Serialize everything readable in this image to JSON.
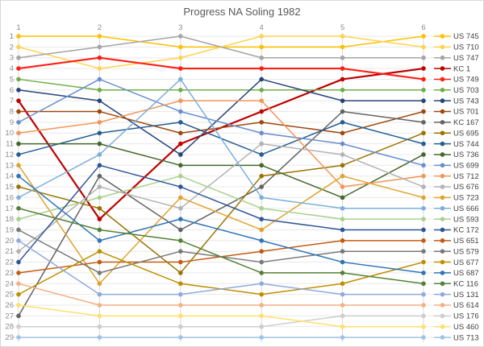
{
  "chart": {
    "title": "Progress NA Soling 1982"
  },
  "chart_data": {
    "type": "line",
    "subtype": "bump-rank-progress",
    "title": "Progress NA Soling 1982",
    "xlabel": "",
    "ylabel": "",
    "x_axis_position": "top",
    "x_ticks": [
      "1",
      "2",
      "3",
      "4",
      "5",
      "6"
    ],
    "y_ticks": [
      "1",
      "2",
      "3",
      "4",
      "5",
      "6",
      "7",
      "8",
      "9",
      "10",
      "11",
      "12",
      "13",
      "14",
      "15",
      "16",
      "17",
      "18",
      "19",
      "20",
      "21",
      "22",
      "23",
      "24",
      "25",
      "26",
      "27",
      "28",
      "29"
    ],
    "ylim": [
      1,
      29
    ],
    "y_inverted": true,
    "grid": true,
    "legend_position": "right",
    "axis_label_color": "#8c8c8c",
    "legend_text_color": "#404040",
    "gridline_color": "#e9e9e9",
    "column_line_color": "#d9d9d9",
    "series": [
      {
        "name": "US 745",
        "color": "#FFC000",
        "ranks": [
          1,
          1,
          2,
          2,
          2,
          1
        ]
      },
      {
        "name": "US 710",
        "color": "#FFD34F",
        "ranks": [
          2,
          4,
          3,
          1,
          1,
          2
        ]
      },
      {
        "name": "US 747",
        "color": "#A5A5A5",
        "ranks": [
          3,
          2,
          1,
          3,
          3,
          3
        ]
      },
      {
        "name": "KC 1",
        "color": "#C00000",
        "ranks": [
          7,
          18,
          11,
          8,
          5,
          4
        ]
      },
      {
        "name": "US 749",
        "color": "#FF2015",
        "ranks": [
          4,
          3,
          4,
          4,
          4,
          5
        ]
      },
      {
        "name": "US 703",
        "color": "#70AD47",
        "ranks": [
          5,
          6,
          6,
          6,
          6,
          6
        ]
      },
      {
        "name": "US 743",
        "color": "#264478",
        "ranks": [
          6,
          7,
          12,
          5,
          7,
          7
        ]
      },
      {
        "name": "US 701",
        "color": "#9E480E",
        "ranks": [
          8,
          8,
          10,
          9,
          10,
          8
        ]
      },
      {
        "name": "KC 167",
        "color": "#636363",
        "ranks": [
          27,
          14,
          19,
          15,
          8,
          9
        ]
      },
      {
        "name": "US 695",
        "color": "#997300",
        "ranks": [
          15,
          17,
          23,
          14,
          13,
          10
        ]
      },
      {
        "name": "US 744",
        "color": "#255E91",
        "ranks": [
          12,
          10,
          9,
          12,
          9,
          11
        ]
      },
      {
        "name": "US 736",
        "color": "#43682B",
        "ranks": [
          11,
          11,
          13,
          13,
          16,
          12
        ]
      },
      {
        "name": "US 699",
        "color": "#698ED0",
        "ranks": [
          9,
          5,
          8,
          10,
          11,
          13
        ]
      },
      {
        "name": "US 712",
        "color": "#F1975A",
        "ranks": [
          10,
          9,
          7,
          7,
          15,
          14
        ]
      },
      {
        "name": "US 676",
        "color": "#B5B2B2",
        "ranks": [
          21,
          15,
          17,
          11,
          12,
          15
        ]
      },
      {
        "name": "US 723",
        "color": "#DFA32E",
        "ranks": [
          13,
          24,
          16,
          19,
          14,
          16
        ]
      },
      {
        "name": "US 666",
        "color": "#7CAFDD",
        "ranks": [
          16,
          12,
          5,
          16,
          17,
          17
        ]
      },
      {
        "name": "US 593",
        "color": "#A9D18E",
        "ranks": [
          18,
          16,
          14,
          17,
          18,
          18
        ]
      },
      {
        "name": "KC 172",
        "color": "#2F5597",
        "ranks": [
          22,
          13,
          15,
          18,
          19,
          19
        ]
      },
      {
        "name": "US 651",
        "color": "#C55A11",
        "ranks": [
          23,
          22,
          22,
          21,
          20,
          20
        ]
      },
      {
        "name": "US 579",
        "color": "#7B7878",
        "ranks": [
          19,
          23,
          21,
          22,
          21,
          21
        ]
      },
      {
        "name": "US 677",
        "color": "#BF8F00",
        "ranks": [
          25,
          21,
          24,
          25,
          24,
          22
        ]
      },
      {
        "name": "US 687",
        "color": "#2E75B6",
        "ranks": [
          14,
          20,
          18,
          20,
          22,
          23
        ]
      },
      {
        "name": "KC 116",
        "color": "#538135",
        "ranks": [
          17,
          19,
          20,
          23,
          23,
          24
        ]
      },
      {
        "name": "US 131",
        "color": "#8FAADC",
        "ranks": [
          20,
          25,
          25,
          24,
          25,
          25
        ]
      },
      {
        "name": "US 614",
        "color": "#F4B183",
        "ranks": [
          24,
          26,
          26,
          26,
          26,
          26
        ]
      },
      {
        "name": "US 176",
        "color": "#CFCDCD",
        "ranks": [
          28,
          28,
          28,
          28,
          27,
          27
        ]
      },
      {
        "name": "US 460",
        "color": "#FFE06B",
        "ranks": [
          26,
          27,
          27,
          27,
          28,
          28
        ]
      },
      {
        "name": "US 713",
        "color": "#9DC3E6",
        "ranks": [
          29,
          29,
          29,
          29,
          29,
          29
        ]
      }
    ]
  }
}
